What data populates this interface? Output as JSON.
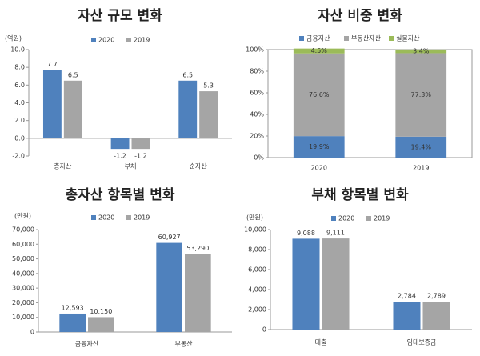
{
  "chart_data": [
    {
      "type": "bar",
      "title": "자산 규모 변화",
      "ylabel": "(억원)",
      "categories": [
        "총자산",
        "부채",
        "순자산"
      ],
      "series": [
        {
          "name": "2020",
          "color": "#4f81bd",
          "values": [
            7.7,
            -1.2,
            6.5
          ]
        },
        {
          "name": "2019",
          "color": "#a5a5a5",
          "values": [
            6.5,
            -1.2,
            5.3
          ]
        }
      ],
      "ylim": [
        -2,
        10
      ],
      "yticks": [
        {
          "value": -2,
          "label": "-2.0"
        },
        {
          "value": 0,
          "label": "0.0"
        },
        {
          "value": 2,
          "label": "2.0"
        },
        {
          "value": 4,
          "label": "4.0"
        },
        {
          "value": 6,
          "label": "6.0"
        },
        {
          "value": 8,
          "label": "8.0"
        },
        {
          "value": 10,
          "label": "10.0"
        }
      ],
      "grid": false
    },
    {
      "type": "stacked_bar",
      "title": "자산 비중 변화",
      "categories": [
        "2020",
        "2019"
      ],
      "series": [
        {
          "name": "금융자산",
          "color": "#4f81bd",
          "values": [
            19.9,
            19.4
          ],
          "value_labels": [
            "19.9%",
            "19.4%"
          ]
        },
        {
          "name": "부동산자산",
          "color": "#a5a5a5",
          "values": [
            76.6,
            77.3
          ],
          "value_labels": [
            "76.6%",
            "77.3%"
          ]
        },
        {
          "name": "실물자산",
          "color": "#9bbb59",
          "values": [
            4.5,
            3.4
          ],
          "value_labels": [
            "4.5%",
            "3.4%"
          ]
        }
      ],
      "ylim": [
        0,
        100
      ],
      "yticks": [
        {
          "value": 0,
          "label": "0%"
        },
        {
          "value": 20,
          "label": "20%"
        },
        {
          "value": 40,
          "label": "40%"
        },
        {
          "value": 60,
          "label": "60%"
        },
        {
          "value": 80,
          "label": "80%"
        },
        {
          "value": 100,
          "label": "100%"
        }
      ],
      "grid": false
    },
    {
      "type": "bar",
      "title": "총자산 항목별 변화",
      "ylabel": "(만원)",
      "categories": [
        "금융자산",
        "부동산"
      ],
      "series": [
        {
          "name": "2020",
          "color": "#4f81bd",
          "values": [
            12593,
            60927
          ],
          "value_labels": [
            "12,593",
            "60,927"
          ]
        },
        {
          "name": "2019",
          "color": "#a5a5a5",
          "values": [
            10150,
            53290
          ],
          "value_labels": [
            "10,150",
            "53,290"
          ]
        }
      ],
      "ylim": [
        0,
        70000
      ],
      "yticks": [
        0,
        {
          "value": 10000,
          "label": "10,000"
        },
        {
          "value": 20000,
          "label": "20,000"
        },
        {
          "value": 30000,
          "label": "30,000"
        },
        {
          "value": 40000,
          "label": "40,000"
        },
        {
          "value": 50000,
          "label": "50,000"
        },
        {
          "value": 60000,
          "label": "60,000"
        },
        {
          "value": 70000,
          "label": "70,000"
        }
      ],
      "grid": false
    },
    {
      "type": "bar",
      "title": "부채 항목별 변화",
      "ylabel": "(만원)",
      "categories": [
        "대출",
        "임대보증금"
      ],
      "series": [
        {
          "name": "2020",
          "color": "#4f81bd",
          "values": [
            9088,
            2784
          ],
          "value_labels": [
            "9,088",
            "2,784"
          ]
        },
        {
          "name": "2019",
          "color": "#a5a5a5",
          "values": [
            9111,
            2789
          ],
          "value_labels": [
            "9,111",
            "2,789"
          ]
        }
      ],
      "ylim": [
        0,
        10000
      ],
      "yticks": [
        0,
        {
          "value": 2000,
          "label": "2,000"
        },
        {
          "value": 4000,
          "label": "4,000"
        },
        {
          "value": 6000,
          "label": "6,000"
        },
        {
          "value": 8000,
          "label": "8,000"
        },
        {
          "value": 10000,
          "label": "10,000"
        }
      ],
      "grid": false
    }
  ]
}
